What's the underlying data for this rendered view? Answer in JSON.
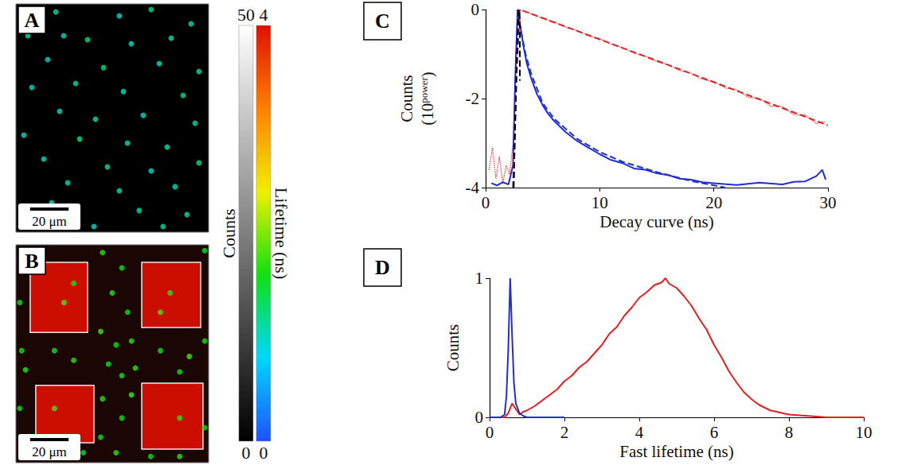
{
  "chart_data": [
    {
      "type": "scatter",
      "panel": "A",
      "tick_labels": false,
      "xlim": [
        0,
        100
      ],
      "ylim": [
        0,
        118.6
      ],
      "scale_bar": {
        "label": "20 μm",
        "value": 20
      },
      "spots": [
        [
          20.7,
          4.1,
          1.1
        ],
        [
          53.7,
          6.2,
          1.0
        ],
        [
          70.2,
          2.9,
          1.2
        ],
        [
          90.9,
          10.3,
          1.0
        ],
        [
          6.2,
          16.5,
          1.1
        ],
        [
          24.8,
          16.5,
          1.0
        ],
        [
          37.2,
          18.6,
          1.2
        ],
        [
          59.9,
          20.7,
          1.0
        ],
        [
          80.6,
          17.8,
          1.1
        ],
        [
          16.5,
          28.9,
          1.0
        ],
        [
          45.5,
          33.1,
          1.2
        ],
        [
          74.4,
          31.0,
          1.0
        ],
        [
          95.0,
          35.1,
          1.1
        ],
        [
          8.3,
          43.4,
          1.0
        ],
        [
          31.0,
          41.3,
          1.1
        ],
        [
          55.8,
          45.5,
          1.0
        ],
        [
          86.8,
          47.5,
          1.2
        ],
        [
          22.7,
          55.8,
          1.0
        ],
        [
          41.3,
          59.9,
          1.1
        ],
        [
          66.1,
          57.9,
          1.0
        ],
        [
          93.0,
          62.0,
          1.1
        ],
        [
          4.1,
          68.2,
          1.0
        ],
        [
          33.1,
          70.2,
          1.2
        ],
        [
          57.9,
          72.3,
          1.0
        ],
        [
          78.5,
          74.4,
          1.1
        ],
        [
          14.5,
          80.6,
          1.0
        ],
        [
          47.5,
          84.7,
          1.1
        ],
        [
          70.2,
          86.8,
          1.0
        ],
        [
          95.0,
          82.6,
          1.2
        ],
        [
          26.9,
          93.0,
          1.0
        ],
        [
          53.7,
          97.1,
          1.1
        ],
        [
          82.6,
          95.0,
          1.0
        ],
        [
          64.0,
          107.4,
          1.1
        ],
        [
          88.8,
          109.5,
          1.0
        ],
        [
          40.5,
          115.7,
          1.0
        ],
        [
          76.4,
          115.7,
          1.1
        ],
        [
          18.6,
          103.3,
          1.0
        ]
      ]
    },
    {
      "type": "scatter",
      "panel": "B",
      "tick_labels": false,
      "xlim": [
        0,
        100
      ],
      "ylim": [
        0,
        113.2
      ],
      "scale_bar": {
        "label": "20 μm",
        "value": 20
      },
      "regions": [
        {
          "x": [
            7.4,
            37.2
          ],
          "y": [
            9.1,
            45.5
          ],
          "lifetime": 4
        },
        {
          "x": [
            65.3,
            95.9
          ],
          "y": [
            9.1,
            43.0
          ],
          "lifetime": 4
        },
        {
          "x": [
            10.3,
            40.5
          ],
          "y": [
            73.0,
            102.9
          ],
          "lifetime": 4
        },
        {
          "x": [
            65.3,
            97.1
          ],
          "y": [
            71.9,
            106.2
          ],
          "lifetime": 4
        }
      ],
      "spots": [
        [
          3,
          5,
          1.6
        ],
        [
          45,
          4,
          1.7
        ],
        [
          55,
          12,
          1.6
        ],
        [
          98,
          3,
          1.5
        ],
        [
          50,
          25,
          1.7
        ],
        [
          58,
          35,
          1.6
        ],
        [
          2,
          30,
          1.6
        ],
        [
          44,
          45,
          1.8
        ],
        [
          52,
          52,
          1.6
        ],
        [
          60,
          50,
          1.7
        ],
        [
          3,
          55,
          1.6
        ],
        [
          20,
          55,
          1.5
        ],
        [
          30,
          60,
          1.7
        ],
        [
          75,
          55,
          1.6
        ],
        [
          90,
          58,
          1.8
        ],
        [
          98,
          50,
          1.6
        ],
        [
          5,
          65,
          1.7
        ],
        [
          48,
          62,
          1.6
        ],
        [
          55,
          68,
          1.5
        ],
        [
          62,
          64,
          1.7
        ],
        [
          85,
          66,
          1.6
        ],
        [
          2,
          85,
          1.6
        ],
        [
          45,
          80,
          1.7
        ],
        [
          55,
          90,
          1.6
        ],
        [
          60,
          78,
          1.8
        ],
        [
          44,
          100,
          1.6
        ],
        [
          52,
          108,
          1.7
        ],
        [
          20,
          110,
          1.6
        ],
        [
          35,
          108,
          1.5
        ],
        [
          70,
          110,
          1.6
        ],
        [
          85,
          110,
          1.7
        ],
        [
          98,
          95,
          1.6
        ],
        [
          25,
          30,
          1.8
        ],
        [
          80,
          25,
          1.7
        ],
        [
          20,
          85,
          1.8
        ],
        [
          85,
          90,
          1.7
        ],
        [
          30,
          20,
          1.6
        ],
        [
          75,
          35,
          1.8
        ]
      ]
    },
    {
      "type": "colorbar",
      "label": "Counts",
      "range": [
        0,
        50
      ],
      "ticks": [
        0,
        50
      ],
      "colors": [
        "#000000",
        "#ffffff"
      ]
    },
    {
      "type": "colorbar",
      "label": "Lifetime (ns)",
      "range": [
        0,
        4
      ],
      "ticks": [
        0,
        4
      ],
      "colors": [
        "#1e50ff",
        "#00d8ff",
        "#10e010",
        "#f0f000",
        "#ff8000",
        "#e01000"
      ]
    },
    {
      "type": "line",
      "panel": "C",
      "xlabel": "Decay curve (ns)",
      "ylabel": "Counts (10power)",
      "ylabel_superscript": "power",
      "xlim": [
        0,
        30
      ],
      "ylim": [
        -4,
        0
      ],
      "xticks": [
        0,
        10,
        20,
        30
      ],
      "yticks": [
        -4,
        -2,
        0
      ],
      "series": [
        {
          "color": "#e02020",
          "line_style": "dotted",
          "x": [
            0.3,
            0.6,
            0.9,
            1.2,
            1.5,
            1.8,
            2.1,
            2.4,
            2.6,
            2.8,
            3.0,
            3.5,
            4,
            5,
            6,
            7,
            8,
            9,
            10,
            11,
            12,
            13,
            14,
            15,
            16,
            17,
            18,
            19,
            20,
            21,
            22,
            23,
            24,
            25,
            26,
            27,
            28,
            29,
            29.8
          ],
          "values": [
            -3.6,
            -3.1,
            -3.8,
            -3.3,
            -3.9,
            -3.5,
            -3.7,
            -3.0,
            -1.8,
            -0.5,
            0,
            -0.05,
            -0.1,
            -0.2,
            -0.28,
            -0.4,
            -0.47,
            -0.59,
            -0.66,
            -0.78,
            -0.86,
            -0.98,
            -1.05,
            -1.17,
            -1.24,
            -1.37,
            -1.43,
            -1.57,
            -1.62,
            -1.76,
            -1.8,
            -1.97,
            -2.0,
            -2.17,
            -2.18,
            -2.36,
            -2.37,
            -2.56,
            -2.52
          ]
        },
        {
          "color": "#1f2fd0",
          "line_style": "solid",
          "x": [
            0.5,
            1,
            1.5,
            2,
            2.4,
            2.6,
            2.8,
            3.0,
            3.3,
            3.6,
            4,
            4.5,
            5,
            5.5,
            6,
            7,
            8,
            9,
            10,
            11,
            12,
            13,
            14,
            15,
            16,
            17,
            18,
            19,
            20,
            22,
            24,
            26,
            27,
            28,
            29,
            29.5,
            29.8
          ],
          "values": [
            -3.9,
            -3.95,
            -3.88,
            -3.93,
            -3.5,
            -1.5,
            0,
            -0.3,
            -0.8,
            -1.2,
            -1.55,
            -1.9,
            -2.15,
            -2.35,
            -2.5,
            -2.75,
            -2.95,
            -3.1,
            -3.25,
            -3.38,
            -3.45,
            -3.57,
            -3.6,
            -3.68,
            -3.72,
            -3.8,
            -3.82,
            -3.88,
            -3.9,
            -3.94,
            -3.89,
            -3.93,
            -3.87,
            -3.86,
            -3.74,
            -3.6,
            -3.82
          ]
        },
        {
          "color": "#e02020",
          "line_style": "dashed",
          "x": [
            2.4,
            2.7,
            3.0,
            10,
            20,
            30
          ],
          "values": [
            -4,
            -1.5,
            0,
            -0.67,
            -1.63,
            -2.6
          ]
        },
        {
          "color": "#1f2fd0",
          "line_style": "dashed",
          "x": [
            2.45,
            2.7,
            2.85,
            3.0,
            3.5,
            4,
            5,
            6,
            8,
            10,
            12,
            15,
            18,
            21
          ],
          "values": [
            -4,
            -1.2,
            0,
            -0.35,
            -1.0,
            -1.45,
            -2.1,
            -2.45,
            -2.9,
            -3.2,
            -3.42,
            -3.65,
            -3.85,
            -4
          ]
        },
        {
          "color": "#000000",
          "line_style": "dashed",
          "x": [
            2.45,
            2.75,
            2.9,
            3.0,
            3.0
          ],
          "values": [
            -4,
            -1,
            0,
            -0.2,
            -1.6
          ]
        }
      ]
    },
    {
      "type": "line",
      "panel": "D",
      "xlabel": "Fast lifetime (ns)",
      "ylabel": "Counts",
      "xlim": [
        0,
        10
      ],
      "ylim": [
        0,
        1
      ],
      "xticks": [
        0,
        2,
        4,
        6,
        8,
        10
      ],
      "yticks": [
        0,
        1
      ],
      "series": [
        {
          "color": "#e02020",
          "line_style": "solid",
          "x": [
            0,
            0.4,
            0.5,
            0.6,
            0.7,
            0.8,
            0.9,
            1.0,
            1.2,
            1.4,
            1.6,
            1.8,
            2.0,
            2.2,
            2.4,
            2.6,
            2.8,
            3.0,
            3.2,
            3.4,
            3.6,
            3.8,
            4.0,
            4.2,
            4.4,
            4.6,
            4.7,
            4.8,
            5.0,
            5.2,
            5.4,
            5.6,
            5.8,
            6.0,
            6.2,
            6.4,
            6.6,
            6.8,
            7.0,
            7.2,
            7.5,
            8.0,
            8.5,
            9.0,
            10
          ],
          "values": [
            0,
            0,
            0.03,
            0.1,
            0.06,
            0.02,
            0.04,
            0.05,
            0.08,
            0.12,
            0.16,
            0.2,
            0.26,
            0.3,
            0.36,
            0.4,
            0.46,
            0.52,
            0.6,
            0.65,
            0.73,
            0.79,
            0.86,
            0.9,
            0.95,
            0.97,
            1.0,
            0.96,
            0.93,
            0.87,
            0.8,
            0.71,
            0.63,
            0.52,
            0.43,
            0.33,
            0.25,
            0.18,
            0.13,
            0.09,
            0.05,
            0.02,
            0.01,
            0,
            0
          ]
        },
        {
          "color": "#1f2fd0",
          "line_style": "solid",
          "x": [
            0,
            0.3,
            0.4,
            0.45,
            0.5,
            0.55,
            0.6,
            0.65,
            0.7,
            0.8,
            0.9,
            1.0,
            1.5,
            2.0
          ],
          "values": [
            0,
            0,
            0.02,
            0.15,
            0.5,
            1.0,
            0.6,
            0.25,
            0.1,
            0.03,
            0.01,
            0,
            0,
            0
          ]
        }
      ]
    }
  ]
}
